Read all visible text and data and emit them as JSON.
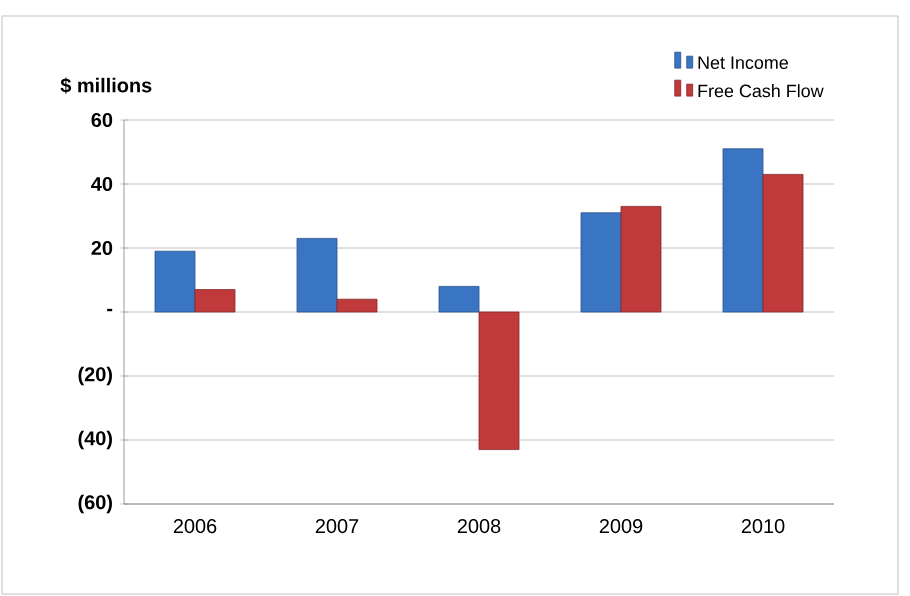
{
  "chart_data": {
    "type": "bar",
    "ylabel": "$ millions",
    "categories": [
      "2006",
      "2007",
      "2008",
      "2009",
      "2010"
    ],
    "series": [
      {
        "name": "Net Income",
        "color": "#3a75c4",
        "values": [
          19,
          23,
          8,
          31,
          51
        ]
      },
      {
        "name": "Free Cash Flow",
        "color": "#c0393b",
        "values": [
          7,
          4,
          -43,
          33,
          43
        ]
      }
    ],
    "ylim": [
      -60,
      60
    ],
    "yticks": [
      {
        "value": -60,
        "label": "(60)"
      },
      {
        "value": -40,
        "label": "(40)"
      },
      {
        "value": -20,
        "label": "(20)"
      },
      {
        "value": 0,
        "label": "-"
      },
      20,
      40,
      60
    ],
    "grid": "y",
    "legend": "top right"
  }
}
